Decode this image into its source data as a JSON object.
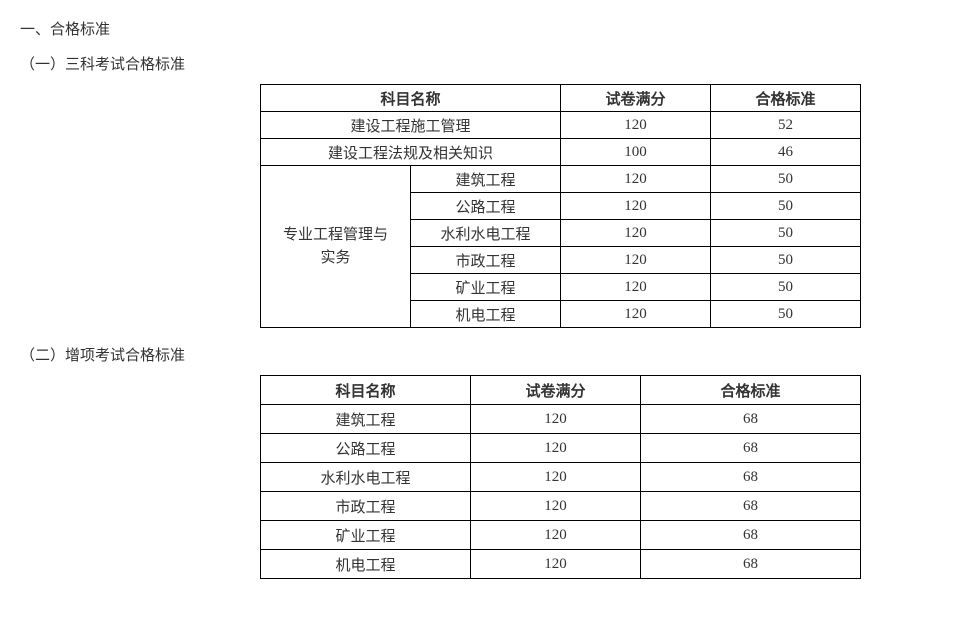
{
  "page": {
    "main_title": "一、合格标准",
    "sections": [
      {
        "subtitle": "（一）三科考试合格标准",
        "table": {
          "type": "table",
          "header": {
            "subject": "科目名称",
            "full_score": "试卷满分",
            "pass_score": "合格标准"
          },
          "simple_rows": [
            {
              "subject": "建设工程施工管理",
              "full": "120",
              "pass": "52"
            },
            {
              "subject": "建设工程法规及相关知识",
              "full": "100",
              "pass": "46"
            }
          ],
          "group_label": "专业工程管理与\n实务",
          "group_rows": [
            {
              "subject": "建筑工程",
              "full": "120",
              "pass": "50"
            },
            {
              "subject": "公路工程",
              "full": "120",
              "pass": "50"
            },
            {
              "subject": "水利水电工程",
              "full": "120",
              "pass": "50"
            },
            {
              "subject": "市政工程",
              "full": "120",
              "pass": "50"
            },
            {
              "subject": "矿业工程",
              "full": "120",
              "pass": "50"
            },
            {
              "subject": "机电工程",
              "full": "120",
              "pass": "50"
            }
          ],
          "border_color": "#000000",
          "background_color": "#ffffff",
          "text_color": "#333333",
          "header_fontweight": "bold",
          "fontsize": 15
        }
      },
      {
        "subtitle": "（二）增项考试合格标准",
        "table": {
          "type": "table",
          "header": {
            "subject": "科目名称",
            "full_score": "试卷满分",
            "pass_score": "合格标准"
          },
          "rows": [
            {
              "subject": "建筑工程",
              "full": "120",
              "pass": "68"
            },
            {
              "subject": "公路工程",
              "full": "120",
              "pass": "68"
            },
            {
              "subject": "水利水电工程",
              "full": "120",
              "pass": "68"
            },
            {
              "subject": "市政工程",
              "full": "120",
              "pass": "68"
            },
            {
              "subject": "矿业工程",
              "full": "120",
              "pass": "68"
            },
            {
              "subject": "机电工程",
              "full": "120",
              "pass": "68"
            }
          ],
          "border_color": "#000000",
          "background_color": "#ffffff",
          "text_color": "#333333",
          "header_fontweight": "bold",
          "fontsize": 15
        }
      }
    ]
  }
}
